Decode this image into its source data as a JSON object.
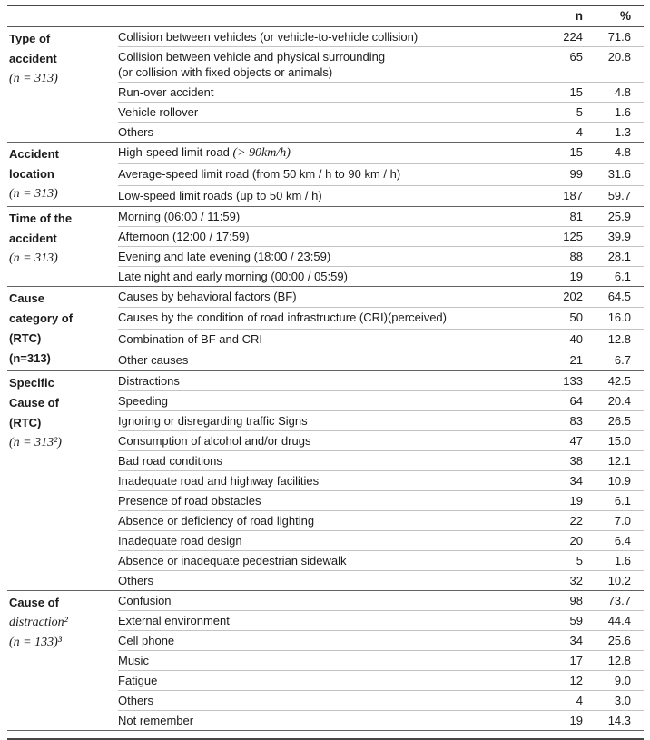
{
  "table": {
    "header": {
      "category": "",
      "item": "",
      "n": "n",
      "pct": "%"
    },
    "groups": [
      {
        "category_lines": [
          {
            "text": "Type of",
            "style": "bold"
          },
          {
            "text": "accident",
            "style": "bold"
          },
          {
            "text": "(n = 313)",
            "style": "math"
          }
        ],
        "rows": [
          {
            "label": "Collision between vehicles (or vehicle-to-vehicle collision)",
            "n": "224",
            "pct": "71.6"
          },
          {
            "label": "Collision between vehicle and physical surrounding",
            "label2": "(or collision with fixed objects or animals)",
            "n": "65",
            "pct": "20.8"
          },
          {
            "label": "Run-over accident",
            "n": "15",
            "pct": "4.8"
          },
          {
            "label": "Vehicle rollover",
            "n": "5",
            "pct": "1.6"
          },
          {
            "label": "Others",
            "n": "4",
            "pct": "1.3"
          }
        ]
      },
      {
        "category_lines": [
          {
            "text": "Accident",
            "style": "bold"
          },
          {
            "text": "location",
            "style": "bold"
          },
          {
            "text": "(n = 313)",
            "style": "math"
          }
        ],
        "rows": [
          {
            "label": [
              {
                "text": "High-speed limit road ",
                "style": "normal"
              },
              {
                "text": "(> 90km/h)",
                "style": "math"
              }
            ],
            "n": "15",
            "pct": "4.8"
          },
          {
            "label": "Average-speed limit road (from 50 km / h to 90 km / h)",
            "n": "99",
            "pct": "31.6"
          },
          {
            "label": "Low-speed limit roads (up to 50 km / h)",
            "n": "187",
            "pct": "59.7"
          }
        ]
      },
      {
        "category_lines": [
          {
            "text": "Time of the",
            "style": "bold"
          },
          {
            "text": "accident",
            "style": "bold"
          },
          {
            "text": "(n = 313)",
            "style": "math"
          }
        ],
        "rows": [
          {
            "label": "Morning (06:00 / 11:59)",
            "n": "81",
            "pct": "25.9"
          },
          {
            "label": "Afternoon (12:00 / 17:59)",
            "n": "125",
            "pct": "39.9"
          },
          {
            "label": "Evening and late evening (18:00 / 23:59)",
            "n": "88",
            "pct": "28.1"
          },
          {
            "label": "Late night and early morning (00:00 / 05:59)",
            "n": "19",
            "pct": "6.1"
          }
        ]
      },
      {
        "category_lines": [
          {
            "text": "Cause",
            "style": "bold"
          },
          {
            "text": "category of",
            "style": "bold"
          },
          {
            "text": "(RTC)",
            "style": "bold"
          },
          {
            "text": "(n=313)",
            "style": "bold"
          }
        ],
        "rows": [
          {
            "label": "Causes by behavioral factors (BF)",
            "n": "202",
            "pct": "64.5"
          },
          {
            "label": "Causes by the condition of road infrastructure (CRI)(perceived)",
            "n": "50",
            "pct": "16.0"
          },
          {
            "label": "Combination of BF and CRI",
            "n": "40",
            "pct": "12.8"
          },
          {
            "label": "Other causes",
            "n": "21",
            "pct": "6.7"
          }
        ]
      },
      {
        "category_lines": [
          {
            "text": "Specific",
            "style": "bold"
          },
          {
            "text": "Cause of",
            "style": "bold"
          },
          {
            "text": "(RTC)",
            "style": "bold"
          },
          {
            "text": "(n = 313²)",
            "style": "math"
          }
        ],
        "rows": [
          {
            "label": "Distractions",
            "n": "133",
            "pct": "42.5"
          },
          {
            "label": "Speeding",
            "n": "64",
            "pct": "20.4"
          },
          {
            "label": "Ignoring or disregarding traffic Signs",
            "n": "83",
            "pct": "26.5"
          },
          {
            "label": "Consumption of alcohol and/or drugs",
            "n": "47",
            "pct": "15.0"
          },
          {
            "label": "Bad road conditions",
            "n": "38",
            "pct": "12.1"
          },
          {
            "label": "Inadequate road and highway facilities",
            "n": "34",
            "pct": "10.9"
          },
          {
            "label": "Presence of road obstacles",
            "n": "19",
            "pct": "6.1"
          },
          {
            "label": "Absence or deficiency of road lighting",
            "n": "22",
            "pct": "7.0"
          },
          {
            "label": "Inadequate road design",
            "n": "20",
            "pct": "6.4"
          },
          {
            "label": "Absence or inadequate pedestrian sidewalk",
            "n": "5",
            "pct": "1.6"
          },
          {
            "label": "Others",
            "n": "32",
            "pct": "10.2"
          }
        ]
      },
      {
        "category_lines": [
          {
            "text": "Cause of",
            "style": "bold"
          },
          {
            "text": "distraction²",
            "style": "math"
          },
          {
            "text": "(n = 133)³",
            "style": "math"
          }
        ],
        "rows": [
          {
            "label": "Confusion",
            "n": "98",
            "pct": "73.7"
          },
          {
            "label": "External environment",
            "n": "59",
            "pct": "44.4"
          },
          {
            "label": "Cell phone",
            "n": "34",
            "pct": "25.6"
          },
          {
            "label": "Music",
            "n": "17",
            "pct": "12.8"
          },
          {
            "label": "Fatigue",
            "n": "12",
            "pct": "9.0"
          },
          {
            "label": "Others",
            "n": "4",
            "pct": "3.0"
          },
          {
            "label": "Not remember",
            "n": "19",
            "pct": "14.3"
          }
        ]
      }
    ]
  }
}
